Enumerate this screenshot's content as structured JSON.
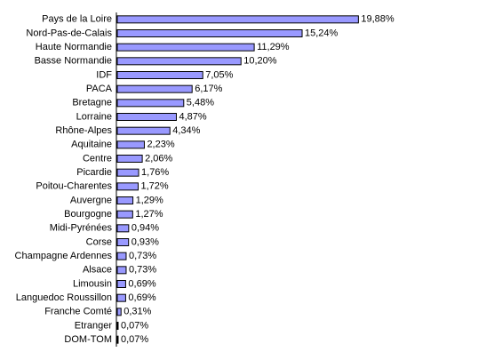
{
  "chart_data": {
    "type": "bar",
    "orientation": "horizontal",
    "categories": [
      "Pays de la Loire",
      "Nord-Pas-de-Calais",
      "Haute Normandie",
      "Basse Normandie",
      "IDF",
      "PACA",
      "Bretagne",
      "Lorraine",
      "Rhône-Alpes",
      "Aquitaine",
      "Centre",
      "Picardie",
      "Poitou-Charentes",
      "Auvergne",
      "Bourgogne",
      "Midi-Pyrénées",
      "Corse",
      "Champagne Ardennes",
      "Alsace",
      "Limousin",
      "Languedoc Roussillon",
      "Franche Comté",
      "Etranger",
      "DOM-TOM"
    ],
    "values": [
      19.88,
      15.24,
      11.29,
      10.2,
      7.05,
      6.17,
      5.48,
      4.87,
      4.34,
      2.23,
      2.06,
      1.76,
      1.72,
      1.29,
      1.27,
      0.94,
      0.93,
      0.73,
      0.73,
      0.69,
      0.69,
      0.31,
      0.07,
      0.07
    ],
    "value_labels": [
      "19,88%",
      "15,24%",
      "11,29%",
      "10,20%",
      "7,05%",
      "6,17%",
      "5,48%",
      "4,87%",
      "4,34%",
      "2,23%",
      "2,06%",
      "1,76%",
      "1,72%",
      "1,29%",
      "1,27%",
      "0,94%",
      "0,93%",
      "0,73%",
      "0,73%",
      "0,69%",
      "0,69%",
      "0,31%",
      "0,07%",
      "0,07%"
    ],
    "color": "#9999ff"
  }
}
